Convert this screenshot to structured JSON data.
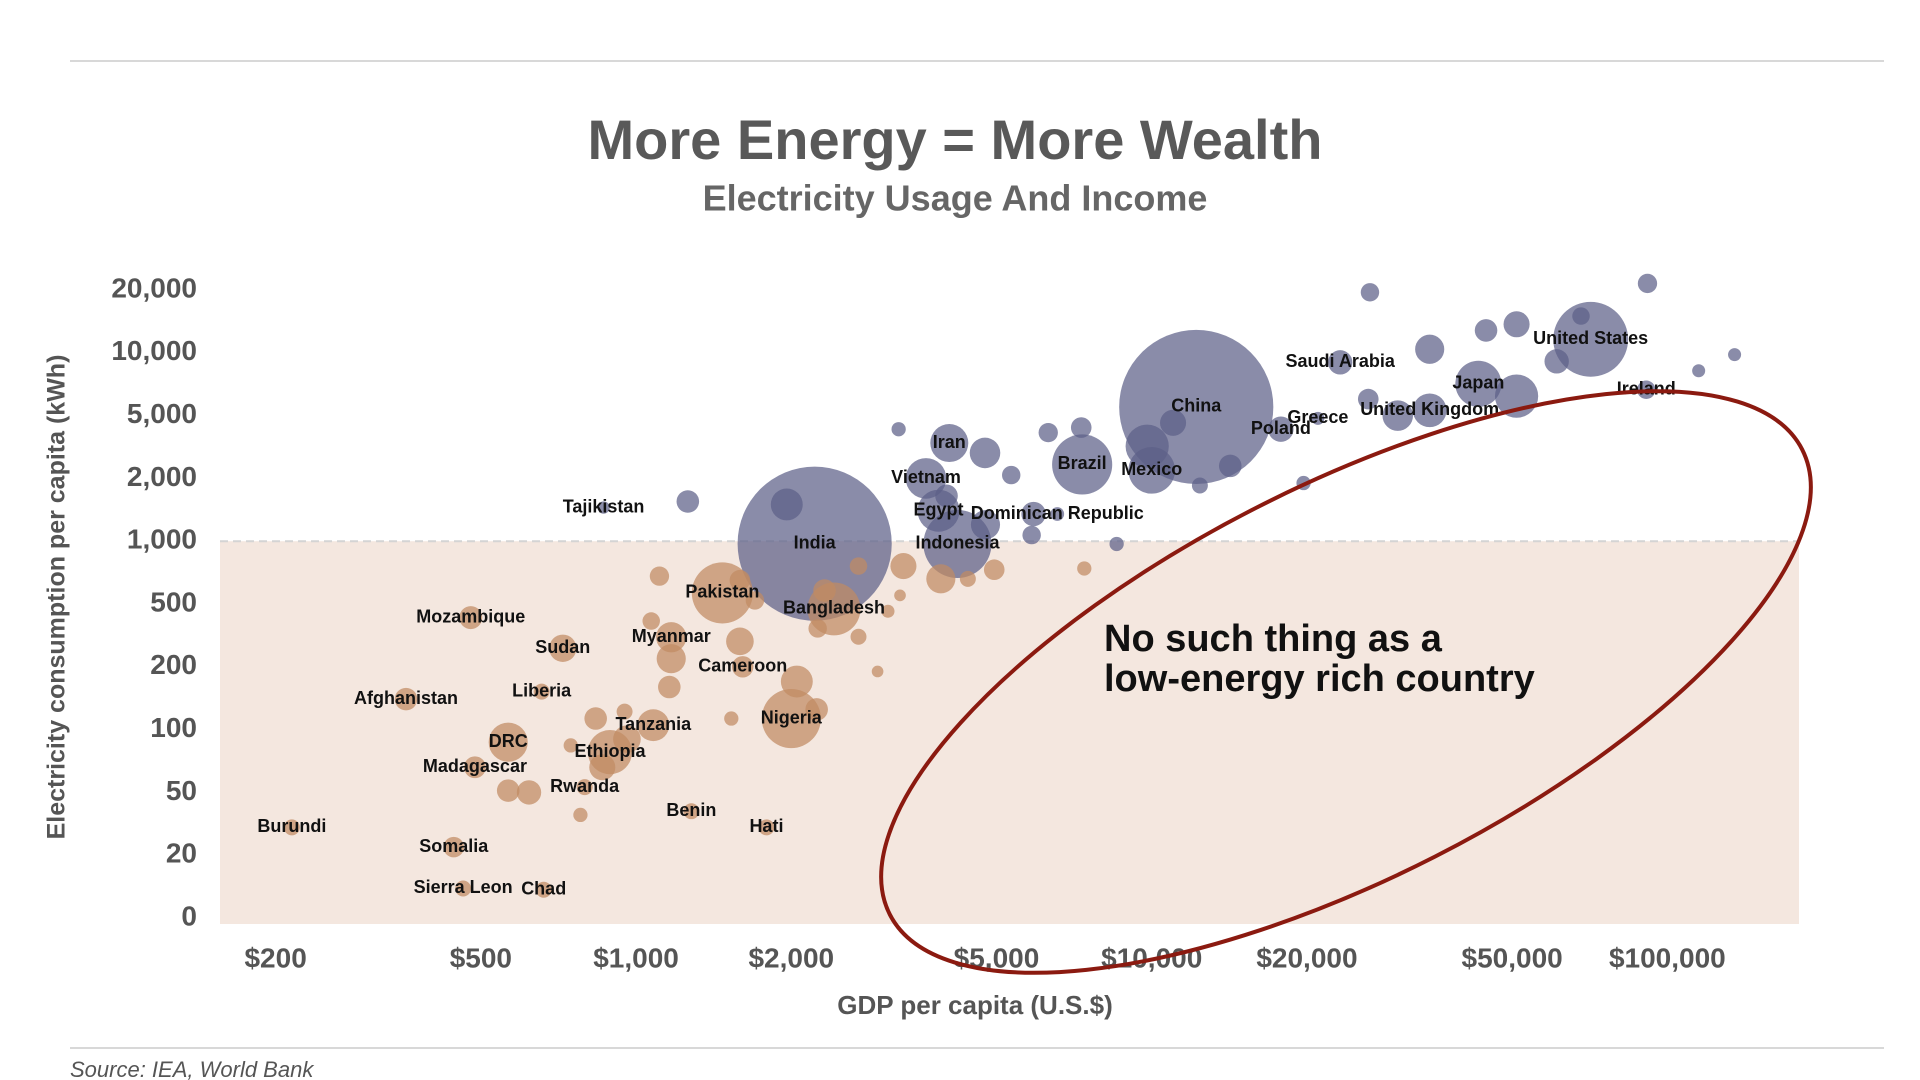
{
  "chart_data": {
    "type": "bubble",
    "title": "More Energy = More Wealth",
    "subtitle": "Electricity Usage And Income",
    "x_label": "GDP per capita (U.S.$)",
    "y_label": "Electricity consumption per capita (kWh)",
    "source": "Source: IEA, World Bank",
    "annotation": [
      "No such thing as a",
      "low-energy rich country"
    ],
    "xlog": true,
    "xlim": [
      156,
      180000
    ],
    "xticks": [
      {
        "value": 200,
        "label": "$200"
      },
      {
        "value": 500,
        "label": "$500"
      },
      {
        "value": 1000,
        "label": "$1,000"
      },
      {
        "value": 2000,
        "label": "$2,000"
      },
      {
        "value": 5000,
        "label": "$5,000"
      },
      {
        "value": 10000,
        "label": "$10,000"
      },
      {
        "value": 20000,
        "label": "$20,000"
      },
      {
        "value": 50000,
        "label": "$50,000"
      },
      {
        "value": 100000,
        "label": "$100,000"
      }
    ],
    "yscale": "tick-spaced",
    "yticks": [
      0,
      20,
      50,
      100,
      200,
      500,
      {
        "value": 1000,
        "label": "1,000"
      },
      {
        "value": 2000,
        "label": "2,000"
      },
      {
        "value": 5000,
        "label": "5,000"
      },
      {
        "value": 10000,
        "label": "10,000"
      },
      {
        "value": 20000,
        "label": "20,000"
      }
    ],
    "threshold": 1000,
    "threshold_fill": "#f4e7df",
    "annotation_color": "#8b1a10",
    "series": [
      {
        "color": "#5d6088",
        "opacity": 0.72,
        "x": [
          71000,
          12200,
          2220,
          43000,
          23200,
          91000,
          34600,
          21000,
          17800,
          7330,
          10000,
          4050,
          3650,
          3860,
          6560,
          4200,
          865,
          26500,
          91500,
          135000,
          115000,
          68000,
          44500,
          51000,
          34600,
          61000,
          51000,
          26300,
          30000,
          14200,
          19700,
          9800,
          11000,
          12400,
          6300,
          7300,
          3230,
          4750,
          5340,
          5900,
          5850,
          1960,
          1260,
          4760,
          8550,
          4000
        ],
        "values": [
          11600,
          5500,
          973,
          7100,
          9000,
          6650,
          5300,
          4800,
          4100,
          2450,
          2250,
          3350,
          2000,
          1400,
          1350,
          970,
          1450,
          19500,
          21500,
          9800,
          8200,
          15000,
          12800,
          13700,
          10400,
          9100,
          6200,
          6000,
          5000,
          2400,
          1900,
          3200,
          4500,
          1850,
          3900,
          4200,
          4100,
          2900,
          2100,
          1350,
          1070,
          1500,
          1550,
          1200,
          970,
          1650
        ],
        "sizes": [
          330,
          1400,
          1400,
          125,
          35,
          20,
          67,
          10,
          38,
          213,
          128,
          85,
          97,
          104,
          11,
          273,
          9,
          20,
          22,
          10,
          10,
          18,
          30,
          40,
          50,
          35,
          110,
          25,
          55,
          30,
          12,
          110,
          40,
          15,
          22,
          25,
          12,
          55,
          20,
          35,
          20,
          60,
          30,
          50,
          12,
          30
        ],
        "labels": [
          "United States",
          "China",
          "India",
          "Japan",
          "Saudi Arabia",
          "Ireland",
          "United Kingdom",
          "Greece",
          "Poland",
          "Brazil",
          "Mexico",
          "Iran",
          "Vietnam",
          "Egypt",
          "Dominican Republic",
          "Indonesia",
          "Tajikistan",
          null,
          null,
          null,
          null,
          null,
          null,
          null,
          null,
          null,
          null,
          null,
          null,
          null,
          null,
          null,
          null,
          null,
          null,
          null,
          null,
          null,
          null,
          null,
          null,
          null,
          null,
          null,
          null,
          null
        ]
      },
      {
        "color": "#c08a62",
        "opacity": 0.72,
        "x": [
          1470,
          2420,
          1170,
          1610,
          2000,
          478,
          721,
          656,
          358,
          1080,
          565,
          890,
          487,
          795,
          1280,
          1790,
          215,
          443,
          462,
          662,
          1110,
          1590,
          1700,
          2320,
          2700,
          3300,
          3900,
          4950,
          4400,
          7400,
          3250,
          3080,
          2700,
          2250,
          2050,
          2240,
          2940,
          1590,
          1170,
          1160,
          1070,
          950,
          835,
          747,
          565,
          620,
          780,
          1530,
          860,
          960
        ],
        "values": [
          565,
          465,
          308,
          200,
          113,
          410,
          262,
          152,
          140,
          105,
          87,
          78,
          66,
          53,
          38,
          30,
          30,
          22.5,
          9.4,
          9,
          680,
          650,
          520,
          580,
          760,
          760,
          660,
          730,
          660,
          740,
          550,
          450,
          310,
          350,
          170,
          125,
          190,
          290,
          225,
          160,
          390,
          122,
          113,
          84,
          51,
          50,
          36,
          113,
          66,
          90
        ],
        "sizes": [
          220,
          165,
          54,
          27,
          206,
          31,
          44,
          15,
          30,
          60,
          90,
          115,
          28,
          15,
          15,
          15,
          15,
          25,
          15,
          15,
          22,
          25,
          20,
          30,
          18,
          40,
          50,
          25,
          15,
          12,
          8,
          10,
          15,
          20,
          60,
          30,
          8,
          45,
          50,
          30,
          18,
          15,
          30,
          12,
          30,
          35,
          12,
          12,
          40,
          45
        ],
        "labels": [
          "Pakistan",
          "Bangladesh",
          "Myanmar",
          "Cameroon",
          "Nigeria",
          "Mozambique",
          "Sudan",
          "Liberia",
          "Afghanistan",
          "Tanzania",
          "DRC",
          "Ethiopia",
          "Madagascar",
          "Rwanda",
          "Benin",
          "Hati",
          "Burundi",
          "Somalia",
          "Sierra Leon",
          "Chad",
          null,
          null,
          null,
          null,
          null,
          null,
          null,
          null,
          null,
          null,
          null,
          null,
          null,
          null,
          null,
          null,
          null,
          null,
          null,
          null,
          null,
          null,
          null,
          null,
          null,
          null,
          null,
          null,
          null,
          null
        ]
      }
    ]
  }
}
